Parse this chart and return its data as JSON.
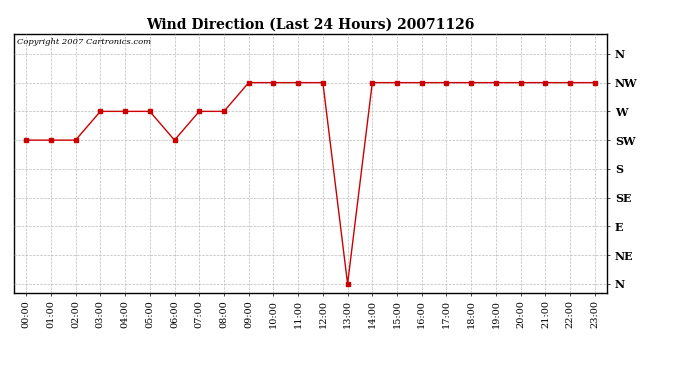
{
  "title": "Wind Direction (Last 24 Hours) 20071126",
  "copyright_text": "Copyright 2007 Cartronics.com",
  "background_color": "#ffffff",
  "line_color": "#cc0000",
  "grid_color": "#bbbbbb",
  "ytick_labels": [
    "N",
    "NW",
    "W",
    "SW",
    "S",
    "SE",
    "E",
    "NE",
    "N"
  ],
  "ytick_values": [
    8,
    7,
    6,
    5,
    4,
    3,
    2,
    1,
    0
  ],
  "xtick_labels": [
    "00:00",
    "01:00",
    "02:00",
    "03:00",
    "04:00",
    "05:00",
    "06:00",
    "07:00",
    "08:00",
    "09:00",
    "10:00",
    "11:00",
    "12:00",
    "13:00",
    "14:00",
    "15:00",
    "16:00",
    "17:00",
    "18:00",
    "19:00",
    "20:00",
    "21:00",
    "22:00",
    "23:00"
  ],
  "hours": [
    0,
    1,
    2,
    3,
    4,
    5,
    6,
    7,
    8,
    9,
    10,
    11,
    12,
    13,
    14,
    15,
    16,
    17,
    18,
    19,
    20,
    21,
    22,
    23
  ],
  "values": [
    5,
    5,
    5,
    6,
    6,
    6,
    5,
    6,
    6,
    7,
    7,
    7,
    7,
    0,
    7,
    7,
    7,
    7,
    7,
    7,
    7,
    7,
    7,
    7
  ],
  "ylim": [
    -0.3,
    8.7
  ],
  "xlim": [
    -0.5,
    23.5
  ],
  "title_fontsize": 10,
  "copyright_fontsize": 6,
  "tick_fontsize": 7,
  "ytick_fontsize": 8
}
